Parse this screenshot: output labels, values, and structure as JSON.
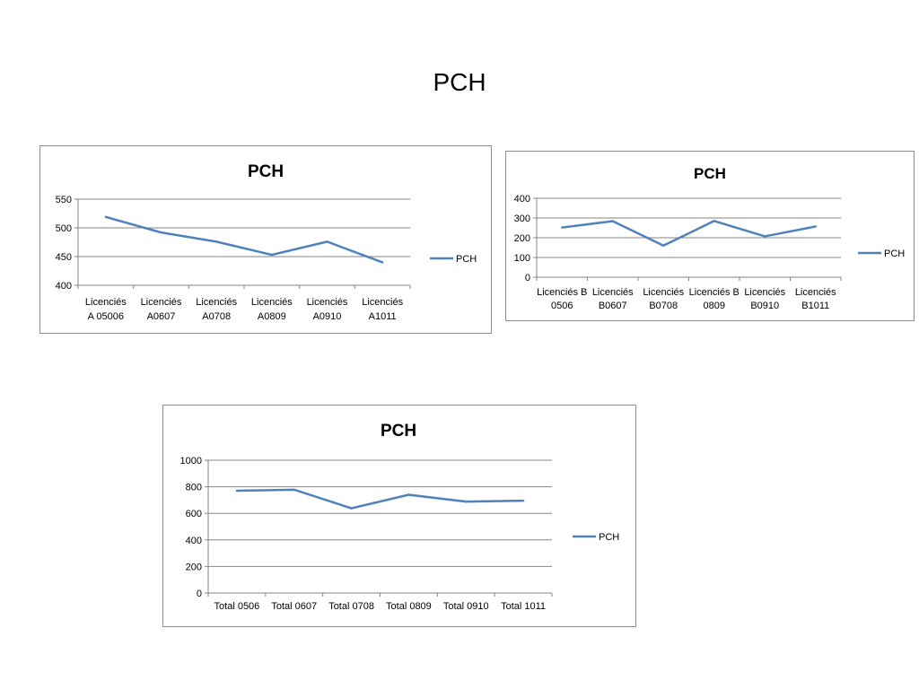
{
  "slide": {
    "title": "PCH"
  },
  "colors": {
    "series": "#4f81bd",
    "grid": "#868686",
    "border": "#8c8c8c"
  },
  "chart_data": [
    {
      "type": "line",
      "title": "PCH",
      "categories": [
        [
          "Licenciés",
          "A 05006"
        ],
        [
          "Licenciés",
          "A0607"
        ],
        [
          "Licenciés",
          "A0708"
        ],
        [
          "Licenciés",
          "A0809"
        ],
        [
          "Licenciés",
          "A0910"
        ],
        [
          "Licenciés",
          "A1011"
        ]
      ],
      "series": [
        {
          "name": "PCH",
          "values": [
            519,
            492,
            476,
            453,
            476,
            440
          ]
        }
      ],
      "ylim": [
        400,
        550
      ],
      "yticks": [
        400,
        450,
        500,
        550
      ],
      "grid": true,
      "legend": "right"
    },
    {
      "type": "line",
      "title": "PCH",
      "categories": [
        [
          "Licenciés B",
          "0506"
        ],
        [
          "Licenciés",
          "B0607"
        ],
        [
          "Licenciés",
          "B0708"
        ],
        [
          "Licenciés B",
          "0809"
        ],
        [
          "Licenciés",
          "B0910"
        ],
        [
          "Licenciés",
          "B1011"
        ]
      ],
      "series": [
        {
          "name": "PCH",
          "values": [
            252,
            284,
            160,
            285,
            207,
            257
          ]
        }
      ],
      "ylim": [
        0,
        400
      ],
      "yticks": [
        0,
        100,
        200,
        300,
        400
      ],
      "grid": true,
      "legend": "right"
    },
    {
      "type": "line",
      "title": "PCH",
      "categories": [
        [
          "Total 0506"
        ],
        [
          "Total 0607"
        ],
        [
          "Total 0708"
        ],
        [
          "Total 0809"
        ],
        [
          "Total 0910"
        ],
        [
          "Total 1011"
        ]
      ],
      "series": [
        {
          "name": "PCH",
          "values": [
            770,
            778,
            638,
            740,
            688,
            695
          ]
        }
      ],
      "ylim": [
        0,
        1000
      ],
      "yticks": [
        0,
        200,
        400,
        600,
        800,
        1000
      ],
      "grid": true,
      "legend": "right"
    }
  ]
}
